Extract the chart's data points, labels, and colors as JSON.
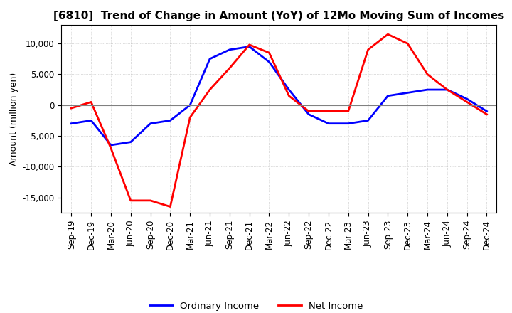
{
  "title": "[6810]  Trend of Change in Amount (YoY) of 12Mo Moving Sum of Incomes",
  "ylabel": "Amount (million yen)",
  "x_labels": [
    "Sep-19",
    "Dec-19",
    "Mar-20",
    "Jun-20",
    "Sep-20",
    "Dec-20",
    "Mar-21",
    "Jun-21",
    "Sep-21",
    "Dec-21",
    "Mar-22",
    "Jun-22",
    "Sep-22",
    "Dec-22",
    "Mar-23",
    "Jun-23",
    "Sep-23",
    "Dec-23",
    "Mar-24",
    "Jun-24",
    "Sep-24",
    "Dec-24"
  ],
  "ordinary_income": [
    -3000,
    -2500,
    -6500,
    -6000,
    -3000,
    -2500,
    0,
    7500,
    9000,
    9500,
    7000,
    2500,
    -1500,
    -3000,
    -3000,
    -2500,
    1500,
    2000,
    2500,
    2500,
    1000,
    -1000
  ],
  "net_income": [
    -500,
    500,
    -7000,
    -15500,
    -15500,
    -16500,
    -2000,
    2500,
    6000,
    9800,
    8500,
    1500,
    -1000,
    -1000,
    -1000,
    9000,
    11500,
    10000,
    5000,
    2500,
    500,
    -1500
  ],
  "ordinary_income_color": "#0000ff",
  "net_income_color": "#ff0000",
  "ylim": [
    -17500,
    13000
  ],
  "yticks": [
    -15000,
    -10000,
    -5000,
    0,
    5000,
    10000
  ],
  "background_color": "#ffffff",
  "grid_color": "#bbbbbb",
  "title_fontsize": 11,
  "label_fontsize": 9,
  "tick_fontsize": 8.5,
  "legend_fontsize": 9.5
}
